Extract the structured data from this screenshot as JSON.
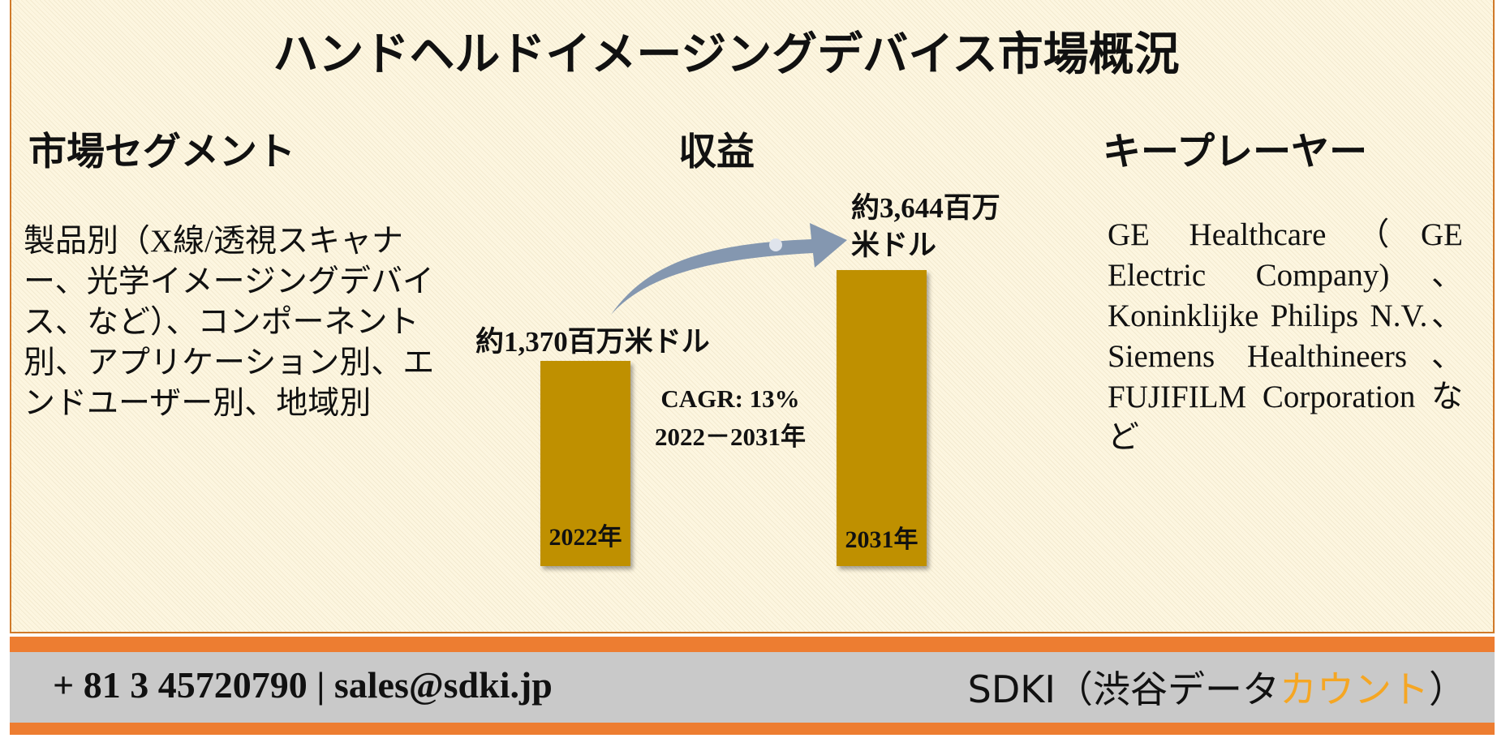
{
  "header": {
    "title": "ハンドヘルドイメージングデバイス市場概況"
  },
  "segments": {
    "heading": "市場セグメント",
    "text": "製品別（X線/透視スキャナー、光学イメージングデバイス、など）、コンポーネント別、アプリケーション別、エンドユーザー別、地域別"
  },
  "revenue": {
    "heading": "収益",
    "value_start": "約1,370百万米ドル",
    "value_end": "約3,644百万米ドル",
    "year_start": "2022年",
    "year_end": "2031年",
    "cagr": "CAGR: 13%",
    "period": "2022－2031年"
  },
  "players": {
    "heading": "キープレーヤー",
    "text": "GE Healthcare（GE Electric Company)、Koninklijke Philips N.V.、Siemens Healthineers、FUJIFILM Corporation など"
  },
  "footer": {
    "contact": "+ 81 3 45720790 | sales@sdki.jp",
    "brand": "SDKI（渋谷データ",
    "brand_highlight": "カウント",
    "brand_close": "）"
  }
}
